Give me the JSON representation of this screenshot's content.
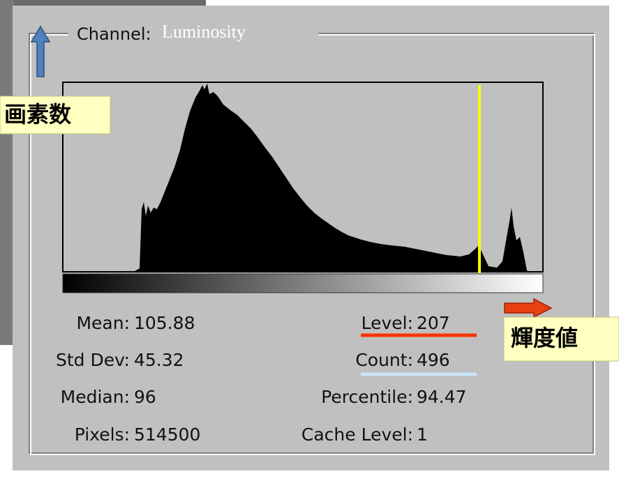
{
  "dialog": {
    "channel_label": "Channel:",
    "channel_value": "Luminosity",
    "stats_left": [
      {
        "label": "Mean:",
        "value": "105.88"
      },
      {
        "label": "Std Dev:",
        "value": "45.32"
      },
      {
        "label": "Median:",
        "value": "96"
      },
      {
        "label": "Pixels:",
        "value": "514500"
      }
    ],
    "stats_right": [
      {
        "label": "Level:",
        "value": "207"
      },
      {
        "label": "Count:",
        "value": "496"
      },
      {
        "label": "Percentile:",
        "value": "94.47"
      },
      {
        "label": "Cache Level:",
        "value": "1"
      }
    ]
  },
  "annotations": {
    "y_axis": "画素数",
    "x_axis": "輝度値"
  }
}
